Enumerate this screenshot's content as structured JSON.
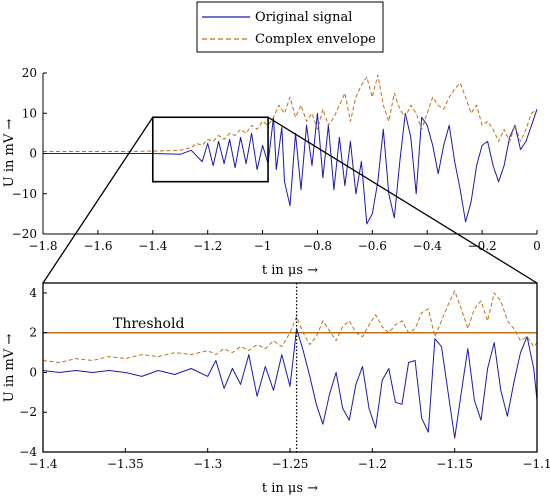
{
  "legend": {
    "original": "Original signal",
    "envelope": "Complex envelope",
    "original_color": "#1a1aaa",
    "envelope_color": "#c0701a"
  },
  "threshold_color": "#c0701a",
  "chart_data": [
    {
      "type": "line",
      "xlabel": "t in μs →",
      "ylabel": "U in mV →",
      "xlim": [
        -1.8,
        0
      ],
      "ylim": [
        -20,
        20
      ],
      "xticks": [
        -1.8,
        -1.6,
        -1.4,
        -1.2,
        -1,
        -0.8,
        -0.6,
        -0.4,
        -0.2,
        0
      ],
      "xtick_labels": [
        "−1.8",
        "−1.6",
        "−1.4",
        "−1.2",
        "−1",
        "−0.8",
        "−0.6",
        "−0.4",
        "−0.2",
        "0"
      ],
      "yticks": [
        -20,
        -10,
        0,
        10,
        20
      ],
      "ytick_labels": [
        "−20",
        "−10",
        "0",
        "10",
        "20"
      ],
      "grid": false,
      "zoom_box": {
        "x": [
          -1.4,
          -0.98
        ],
        "y": [
          -7,
          9
        ]
      },
      "series": [
        {
          "name": "Original signal",
          "style": "solid",
          "x": [
            -1.8,
            -1.5,
            -1.4,
            -1.3,
            -1.26,
            -1.22,
            -1.2,
            -1.18,
            -1.16,
            -1.14,
            -1.12,
            -1.1,
            -1.08,
            -1.06,
            -1.04,
            -1.02,
            -1.0,
            -0.98,
            -0.96,
            -0.95,
            -0.93,
            -0.92,
            -0.9,
            -0.88,
            -0.86,
            -0.84,
            -0.82,
            -0.8,
            -0.78,
            -0.76,
            -0.74,
            -0.72,
            -0.7,
            -0.68,
            -0.66,
            -0.64,
            -0.62,
            -0.6,
            -0.58,
            -0.56,
            -0.54,
            -0.52,
            -0.5,
            -0.48,
            -0.46,
            -0.44,
            -0.42,
            -0.4,
            -0.38,
            -0.36,
            -0.34,
            -0.32,
            -0.3,
            -0.28,
            -0.26,
            -0.24,
            -0.22,
            -0.2,
            -0.18,
            -0.16,
            -0.14,
            -0.12,
            -0.1,
            -0.08,
            -0.06,
            -0.04,
            -0.02,
            0.0
          ],
          "y": [
            0,
            0,
            0,
            -0.2,
            0.8,
            -2,
            2.5,
            -3,
            3,
            -2.5,
            3.5,
            -3.5,
            4,
            -2.5,
            5,
            -4,
            2,
            -2.5,
            9,
            -4,
            6.5,
            -7,
            -13,
            5,
            -9,
            7,
            -3,
            10,
            -6,
            7,
            -9,
            4,
            -8,
            3,
            -10,
            -2,
            -17.5,
            -15,
            -7,
            6,
            -10,
            -16,
            -2,
            10,
            4,
            -10,
            9,
            7,
            2,
            -5,
            2,
            7,
            -2,
            -9,
            -17,
            -12,
            -3,
            2,
            3,
            -3,
            -7,
            -3,
            4,
            7,
            1,
            3,
            7,
            11
          ]
        },
        {
          "name": "Complex envelope",
          "style": "dashed",
          "x": [
            -1.8,
            -1.5,
            -1.4,
            -1.3,
            -1.26,
            -1.24,
            -1.22,
            -1.2,
            -1.18,
            -1.16,
            -1.14,
            -1.12,
            -1.1,
            -1.08,
            -1.06,
            -1.04,
            -1.02,
            -1.0,
            -0.98,
            -0.96,
            -0.94,
            -0.92,
            -0.9,
            -0.88,
            -0.86,
            -0.84,
            -0.82,
            -0.8,
            -0.78,
            -0.76,
            -0.74,
            -0.72,
            -0.7,
            -0.68,
            -0.66,
            -0.64,
            -0.62,
            -0.6,
            -0.58,
            -0.56,
            -0.54,
            -0.52,
            -0.5,
            -0.48,
            -0.46,
            -0.44,
            -0.42,
            -0.4,
            -0.38,
            -0.36,
            -0.34,
            -0.32,
            -0.3,
            -0.28,
            -0.26,
            -0.24,
            -0.22,
            -0.2,
            -0.18,
            -0.16,
            -0.14,
            -0.12,
            -0.1,
            -0.08,
            -0.06,
            -0.04,
            -0.02,
            0.0
          ],
          "y": [
            0.5,
            0.5,
            0.6,
            0.8,
            1.5,
            2.5,
            2,
            3.5,
            3,
            4.5,
            3.5,
            5,
            4.5,
            6,
            5,
            7,
            6,
            8,
            7,
            9,
            12,
            10,
            14,
            9,
            12,
            8,
            10,
            6,
            11,
            7,
            9,
            12,
            15,
            8,
            14,
            17,
            19,
            14,
            19.5,
            12,
            8,
            15,
            11,
            9,
            12,
            10,
            6,
            10,
            14,
            12,
            11,
            14,
            16,
            17.5,
            14,
            10,
            12,
            7,
            8,
            6,
            3,
            6,
            3,
            7,
            3,
            6,
            10,
            11
          ]
        }
      ]
    },
    {
      "type": "line",
      "xlabel": "t in μs →",
      "ylabel": "U in mV →",
      "xlim": [
        -1.4,
        -1.1
      ],
      "ylim": [
        -4,
        4.5
      ],
      "xticks": [
        -1.4,
        -1.35,
        -1.3,
        -1.25,
        -1.2,
        -1.15,
        -1.1
      ],
      "xtick_labels": [
        "−1.4",
        "−1.35",
        "−1.3",
        "−1.25",
        "−1.2",
        "−1.15",
        "−1.1"
      ],
      "yticks": [
        -4,
        -2,
        0,
        2,
        4
      ],
      "ytick_labels": [
        "−4",
        "−2",
        "0",
        "2",
        "4"
      ],
      "grid": false,
      "threshold": {
        "value": 2,
        "label": "Threshold"
      },
      "marker_line_x": -1.246,
      "series": [
        {
          "name": "Original signal",
          "style": "solid",
          "x": [
            -1.4,
            -1.39,
            -1.38,
            -1.37,
            -1.36,
            -1.35,
            -1.34,
            -1.33,
            -1.32,
            -1.31,
            -1.3,
            -1.295,
            -1.29,
            -1.285,
            -1.28,
            -1.275,
            -1.27,
            -1.265,
            -1.26,
            -1.255,
            -1.25,
            -1.246,
            -1.242,
            -1.238,
            -1.234,
            -1.23,
            -1.226,
            -1.222,
            -1.218,
            -1.214,
            -1.21,
            -1.206,
            -1.202,
            -1.198,
            -1.194,
            -1.19,
            -1.186,
            -1.182,
            -1.178,
            -1.174,
            -1.17,
            -1.166,
            -1.162,
            -1.158,
            -1.154,
            -1.15,
            -1.146,
            -1.142,
            -1.138,
            -1.134,
            -1.13,
            -1.126,
            -1.122,
            -1.118,
            -1.114,
            -1.11,
            -1.106,
            -1.102,
            -1.1
          ],
          "y": [
            0.1,
            0.0,
            0.1,
            0.0,
            0.1,
            0.0,
            -0.2,
            0.1,
            -0.1,
            0.2,
            -0.2,
            0.6,
            -0.8,
            0.2,
            -0.6,
            0.9,
            -1.2,
            0.3,
            -0.9,
            0.9,
            -0.7,
            2.2,
            1.1,
            -0.2,
            -1.6,
            -2.6,
            -1.1,
            0.0,
            -1.8,
            -2.4,
            -0.6,
            0.3,
            -1.8,
            -2.8,
            -0.4,
            0.2,
            -1.5,
            -1.6,
            0.5,
            0.6,
            -2.3,
            -3.0,
            1.7,
            1.3,
            -1.0,
            -3.3,
            -1.0,
            1.2,
            -1.4,
            -2.4,
            0.2,
            1.5,
            -0.9,
            -2.2,
            -0.5,
            1.0,
            1.8,
            0.2,
            -1.4
          ]
        },
        {
          "name": "Complex envelope",
          "style": "dashed",
          "x": [
            -1.4,
            -1.39,
            -1.38,
            -1.37,
            -1.36,
            -1.35,
            -1.34,
            -1.33,
            -1.32,
            -1.31,
            -1.3,
            -1.295,
            -1.29,
            -1.285,
            -1.28,
            -1.275,
            -1.27,
            -1.265,
            -1.26,
            -1.255,
            -1.25,
            -1.246,
            -1.242,
            -1.238,
            -1.234,
            -1.23,
            -1.226,
            -1.222,
            -1.218,
            -1.214,
            -1.21,
            -1.206,
            -1.202,
            -1.198,
            -1.194,
            -1.19,
            -1.186,
            -1.182,
            -1.178,
            -1.174,
            -1.17,
            -1.166,
            -1.162,
            -1.158,
            -1.154,
            -1.15,
            -1.146,
            -1.142,
            -1.138,
            -1.134,
            -1.13,
            -1.126,
            -1.122,
            -1.118,
            -1.114,
            -1.11,
            -1.106,
            -1.102,
            -1.1
          ],
          "y": [
            0.6,
            0.5,
            0.7,
            0.6,
            0.8,
            0.7,
            0.9,
            0.8,
            1.0,
            0.9,
            1.1,
            0.9,
            1.2,
            1.0,
            1.3,
            1.1,
            1.4,
            1.2,
            1.6,
            1.3,
            2.0,
            2.8,
            2.0,
            1.4,
            1.8,
            2.6,
            2.1,
            1.6,
            2.3,
            2.6,
            2.0,
            1.8,
            2.4,
            2.9,
            2.3,
            2.0,
            2.4,
            2.6,
            2.0,
            2.2,
            3.0,
            3.2,
            1.8,
            2.6,
            3.4,
            4.1,
            3.2,
            2.2,
            3.2,
            3.6,
            2.6,
            4.0,
            3.6,
            2.6,
            2.2,
            1.6,
            1.8,
            1.3,
            1.5
          ]
        }
      ]
    }
  ]
}
